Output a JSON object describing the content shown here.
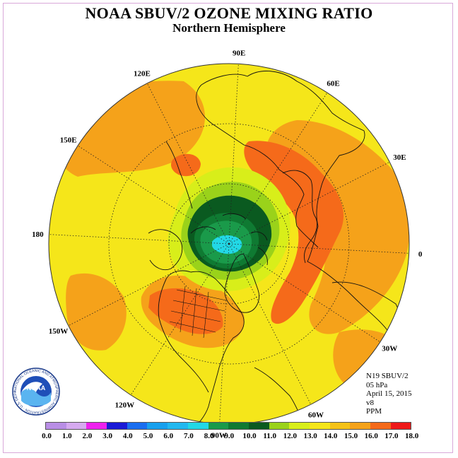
{
  "title": "NOAA SBUV/2 OZONE MIXING RATIO",
  "subtitle": "Northern Hemisphere",
  "info": {
    "instrument": "N19 SBUV/2",
    "level": "05 hPa",
    "date": "April 15, 2015",
    "version": "v8",
    "units": "PPM"
  },
  "logo": {
    "text": "NOAA",
    "ring_text": "NATIONAL OCEANIC AND ATMOSPHERIC ADMINISTRATION · U.S. DEPARTMENT OF COMMERCE"
  },
  "chart_data": {
    "type": "heatmap",
    "projection": "north polar stereographic",
    "longitude_labels": [
      "0",
      "30E",
      "60E",
      "90E",
      "120E",
      "150E",
      "180",
      "150W",
      "120W",
      "90W",
      "60W",
      "30W"
    ],
    "colorbar": {
      "ticks": [
        "0.0",
        "1.0",
        "2.0",
        "3.0",
        "4.0",
        "5.0",
        "6.0",
        "7.0",
        "8.0",
        "9.0",
        "10.0",
        "11.0",
        "12.0",
        "13.0",
        "14.0",
        "15.0",
        "16.0",
        "17.0",
        "18.0"
      ],
      "colors": [
        "#b98ee6",
        "#d6aaf0",
        "#ee22ee",
        "#1a1ad6",
        "#1a6ef0",
        "#18a0ee",
        "#22b8f0",
        "#22d8e6",
        "#1a9a4a",
        "#0f7a32",
        "#0a5a20",
        "#9ad21a",
        "#d8ee1a",
        "#f5e61a",
        "#f5c218",
        "#f5a21a",
        "#f56a1a",
        "#ee1a1a",
        "#8a5a3a"
      ]
    },
    "field": {
      "background_value": 13.5,
      "polar_minimum_value": 7.5,
      "maxima_value": 15.5,
      "maxima_regions": [
        "Europe / North Atlantic",
        "North America",
        "NE Asia coast"
      ]
    }
  }
}
